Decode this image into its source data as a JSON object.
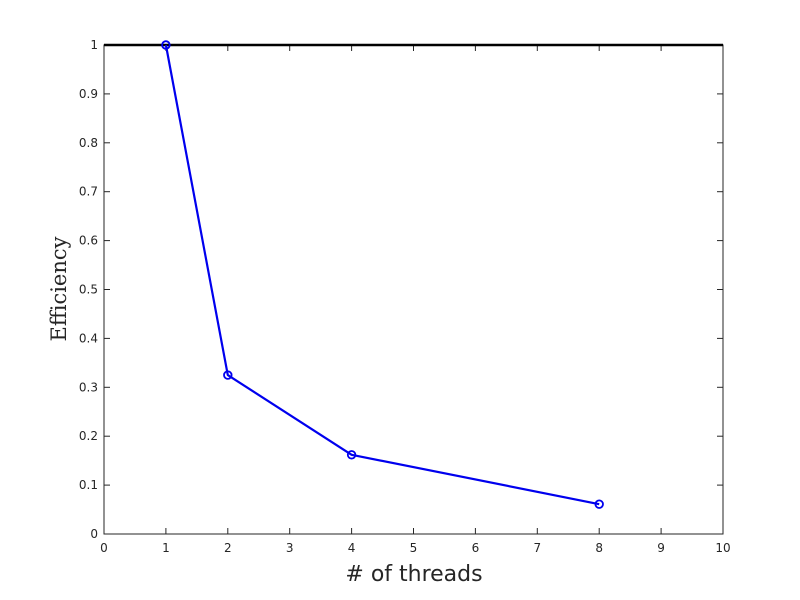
{
  "chart_data": {
    "type": "line",
    "title": "",
    "xlabel": "# of threads",
    "ylabel": "Efficiency",
    "xlim": [
      0,
      10
    ],
    "ylim": [
      0,
      1
    ],
    "xticks": [
      0,
      1,
      2,
      3,
      4,
      5,
      6,
      7,
      8,
      9,
      10
    ],
    "yticks": [
      0,
      0.1,
      0.2,
      0.3,
      0.4,
      0.5,
      0.6,
      0.7,
      0.8,
      0.9,
      1
    ],
    "xtick_labels": [
      "0",
      "1",
      "2",
      "3",
      "4",
      "5",
      "6",
      "7",
      "8",
      "9",
      "10"
    ],
    "ytick_labels": [
      "0",
      "0.1",
      "0.2",
      "0.3",
      "0.4",
      "0.5",
      "0.6",
      "0.7",
      "0.8",
      "0.9",
      "1"
    ],
    "grid": false,
    "series": [
      {
        "color": "#0000ee",
        "marker": "circle",
        "x": [
          1,
          2,
          4,
          8
        ],
        "y": [
          1.0,
          0.325,
          0.162,
          0.061
        ]
      }
    ],
    "reference_lines": [
      {
        "orientation": "horizontal",
        "y": 1,
        "color": "#000000"
      }
    ]
  }
}
